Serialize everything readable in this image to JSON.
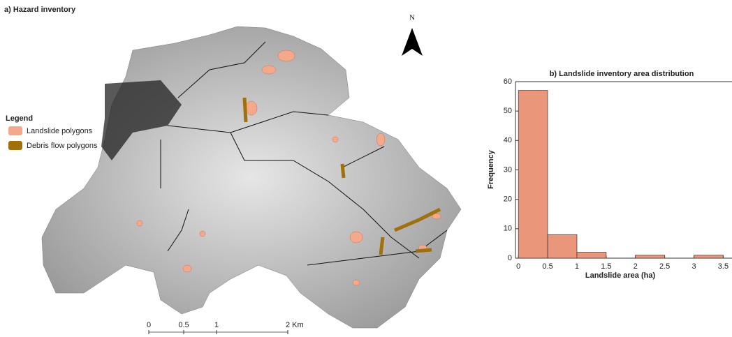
{
  "map": {
    "title": "a) Hazard inventory",
    "north": "N",
    "legend": {
      "title": "Legend",
      "items": [
        {
          "label": "Landslide polygons",
          "color": "#f4a98a"
        },
        {
          "label": "Debris flow polygons",
          "color": "#a0700a"
        }
      ]
    },
    "scale_bar": [
      "0",
      "0.5",
      "1",
      "2 Km"
    ]
  },
  "chart_data": {
    "type": "histogram",
    "title": "b) Landslide inventory area distribution",
    "xlabel": "Landslide area  (ha)",
    "ylabel": "Frequency",
    "bins": [
      0,
      0.5,
      1,
      1.5,
      2,
      2.5,
      3,
      3.5
    ],
    "counts": [
      57,
      8,
      2,
      0,
      1,
      0,
      1
    ],
    "color": "#e9967a",
    "xlim": [
      -0.05,
      3.65
    ],
    "ylim": [
      0,
      60
    ],
    "xticks": [
      0,
      0.5,
      1,
      1.5,
      2,
      2.5,
      3,
      3.5
    ],
    "yticks": [
      0,
      10,
      20,
      30,
      40,
      50,
      60
    ]
  }
}
